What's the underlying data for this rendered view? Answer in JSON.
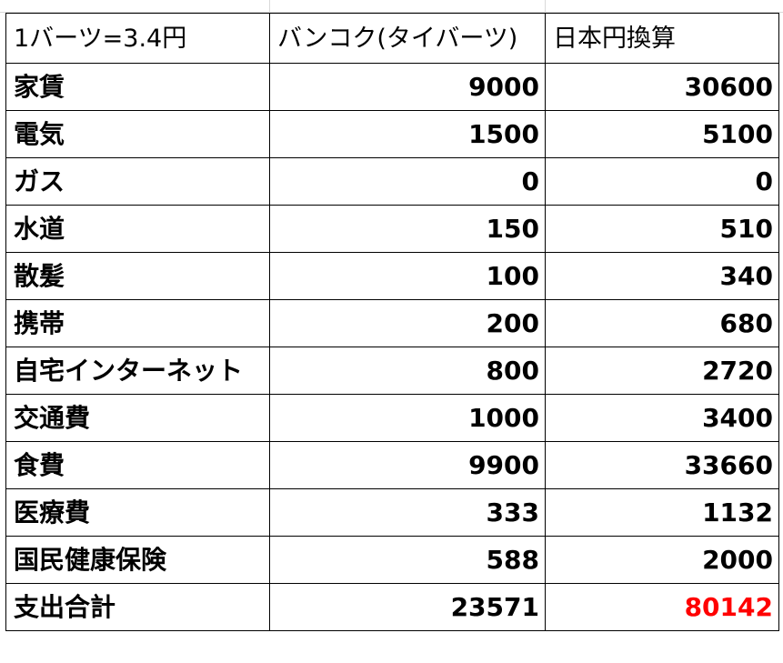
{
  "header": {
    "rate": "1バーツ=3.4円",
    "bangkok": "バンコク(タイバーツ)",
    "jpy": "日本円換算"
  },
  "rows": [
    {
      "label": "家賃",
      "thb": "9000",
      "jpy": "30600"
    },
    {
      "label": "電気",
      "thb": "1500",
      "jpy": "5100"
    },
    {
      "label": "ガス",
      "thb": "0",
      "jpy": "0"
    },
    {
      "label": "水道",
      "thb": "150",
      "jpy": "510"
    },
    {
      "label": "散髪",
      "thb": "100",
      "jpy": "340"
    },
    {
      "label": "携帯",
      "thb": "200",
      "jpy": "680"
    },
    {
      "label": "自宅インターネット",
      "thb": "800",
      "jpy": "2720"
    },
    {
      "label": "交通費",
      "thb": "1000",
      "jpy": "3400"
    },
    {
      "label": "食費",
      "thb": "9900",
      "jpy": "33660"
    },
    {
      "label": "医療費",
      "thb": "333",
      "jpy": "1132"
    },
    {
      "label": "国民健康保険",
      "thb": "588",
      "jpy": "2000"
    }
  ],
  "total": {
    "label": "支出合計",
    "thb": "23571",
    "jpy": "80142",
    "jpy_color": "#ff0000"
  }
}
